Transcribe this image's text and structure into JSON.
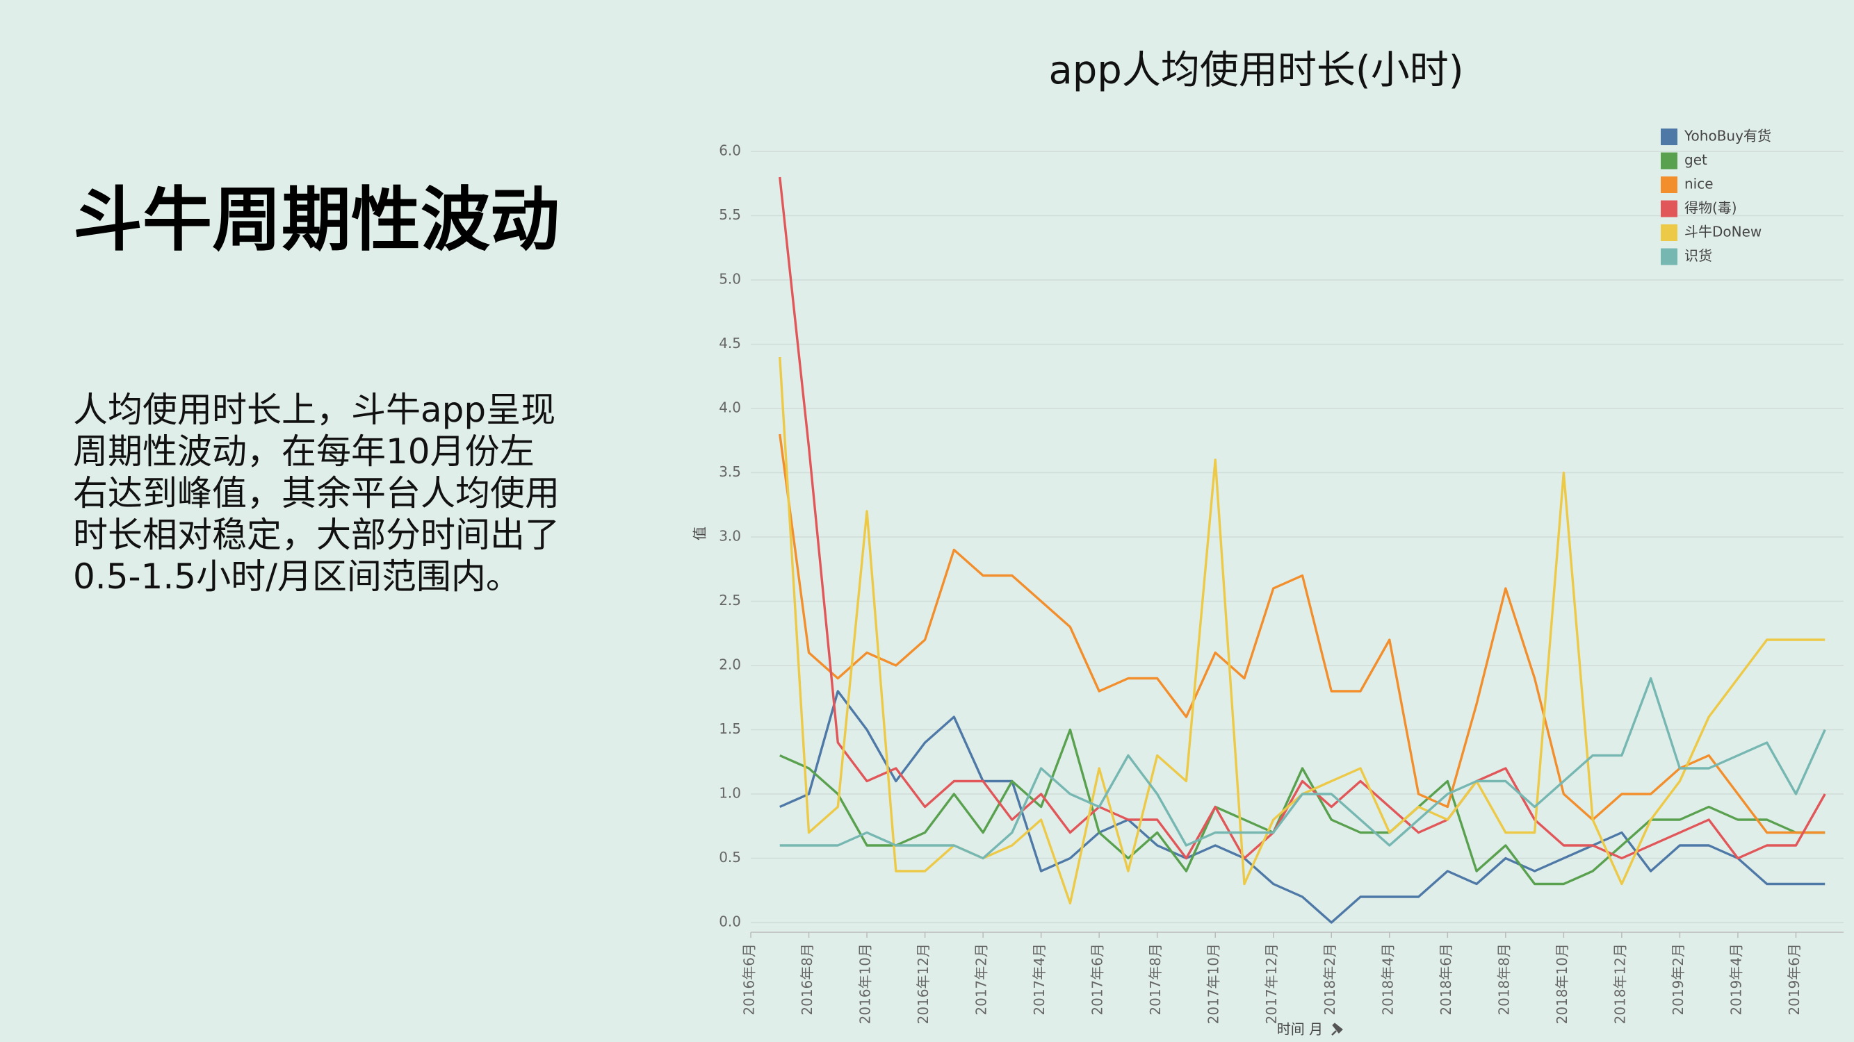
{
  "slide": {
    "heading": "斗牛周期性波动",
    "paragraph_lines": [
      "人均使用时长上，斗牛app呈现",
      "周期性波动，在每年10月份左",
      "右达到峰值，其余平台人均使用",
      "时长相对稳定，大部分时间出了",
      "0.5-1.5小时/月区间范围内。"
    ]
  },
  "chart_data": {
    "type": "line",
    "title": "app人均使用时长(小时)",
    "x_label": "时间 月",
    "y_label": "值",
    "x": [
      "2016-07",
      "2016-08",
      "2016-09",
      "2016-10",
      "2016-11",
      "2016-12",
      "2017-01",
      "2017-02",
      "2017-03",
      "2017-04",
      "2017-05",
      "2017-06",
      "2017-07",
      "2017-08",
      "2017-09",
      "2017-10",
      "2017-11",
      "2017-12",
      "2018-01",
      "2018-02",
      "2018-03",
      "2018-04",
      "2018-05",
      "2018-06",
      "2018-07",
      "2018-08",
      "2018-09",
      "2018-10",
      "2018-11",
      "2018-12",
      "2019-01",
      "2019-02",
      "2019-03",
      "2019-04",
      "2019-05",
      "2019-06",
      "2019-07"
    ],
    "xlim": [
      "2016-06",
      "2019-08"
    ],
    "xticks": [
      {
        "value": "2016-06",
        "label": "2016年6月"
      },
      {
        "value": "2016-08",
        "label": "2016年8月"
      },
      {
        "value": "2016-10",
        "label": "2016年10月"
      },
      {
        "value": "2016-12",
        "label": "2016年12月"
      },
      {
        "value": "2017-02",
        "label": "2017年2月"
      },
      {
        "value": "2017-04",
        "label": "2017年4月"
      },
      {
        "value": "2017-06",
        "label": "2017年6月"
      },
      {
        "value": "2017-08",
        "label": "2017年8月"
      },
      {
        "value": "2017-10",
        "label": "2017年10月"
      },
      {
        "value": "2017-12",
        "label": "2017年12月"
      },
      {
        "value": "2018-02",
        "label": "2018年2月"
      },
      {
        "value": "2018-04",
        "label": "2018年4月"
      },
      {
        "value": "2018-06",
        "label": "2018年6月"
      },
      {
        "value": "2018-08",
        "label": "2018年8月"
      },
      {
        "value": "2018-10",
        "label": "2018年10月"
      },
      {
        "value": "2018-12",
        "label": "2018年12月"
      },
      {
        "value": "2019-02",
        "label": "2019年2月"
      },
      {
        "value": "2019-04",
        "label": "2019年4月"
      },
      {
        "value": "2019-06",
        "label": "2019年6月"
      }
    ],
    "ylim": [
      0,
      6
    ],
    "yticks": [
      {
        "value": 0,
        "label": "0.0"
      },
      0.5,
      {
        "value": 1,
        "label": "1.0"
      },
      1.5,
      {
        "value": 2,
        "label": "2.0"
      },
      2.5,
      {
        "value": 3,
        "label": "3.0"
      },
      3.5,
      {
        "value": 4,
        "label": "4.0"
      },
      4.5,
      {
        "value": 5,
        "label": "5.0"
      },
      5.5,
      {
        "value": 6,
        "label": "6.0"
      }
    ],
    "grid": true,
    "legend": "top-right",
    "series": [
      {
        "name": "YohoBuy有货",
        "color": "#4e79a7",
        "values": [
          0.9,
          1.0,
          1.8,
          1.5,
          1.1,
          1.4,
          1.6,
          1.1,
          1.1,
          0.4,
          0.5,
          0.7,
          0.8,
          0.6,
          0.5,
          0.6,
          0.5,
          0.3,
          0.2,
          0.0,
          0.2,
          0.2,
          0.2,
          0.4,
          0.3,
          0.5,
          0.4,
          0.5,
          0.6,
          0.7,
          0.4,
          0.6,
          0.6,
          0.5,
          0.3,
          0.3,
          0.3
        ]
      },
      {
        "name": "get",
        "color": "#59a14f",
        "values": [
          1.3,
          1.2,
          1.0,
          0.6,
          0.6,
          0.7,
          1.0,
          0.7,
          1.1,
          0.9,
          1.5,
          0.7,
          0.5,
          0.7,
          0.4,
          0.9,
          0.8,
          0.7,
          1.2,
          0.8,
          0.7,
          0.7,
          0.9,
          1.1,
          0.4,
          0.6,
          0.3,
          0.3,
          0.4,
          0.6,
          0.8,
          0.8,
          0.9,
          0.8,
          0.8,
          0.7,
          0.7
        ]
      },
      {
        "name": "nice",
        "color": "#f28e2b",
        "values": [
          3.8,
          2.1,
          1.9,
          2.1,
          2.0,
          2.2,
          2.9,
          2.7,
          2.7,
          2.5,
          2.3,
          1.8,
          1.9,
          1.9,
          1.6,
          2.1,
          1.9,
          2.6,
          2.7,
          1.8,
          1.8,
          2.2,
          1.0,
          0.9,
          1.7,
          2.6,
          1.9,
          1.0,
          0.8,
          1.0,
          1.0,
          1.2,
          1.3,
          1.0,
          0.7,
          0.7,
          0.7
        ]
      },
      {
        "name": "得物(毒)",
        "color": "#e15759",
        "values": [
          5.8,
          3.7,
          1.4,
          1.1,
          1.2,
          0.9,
          1.1,
          1.1,
          0.8,
          1.0,
          0.7,
          0.9,
          0.8,
          0.8,
          0.5,
          0.9,
          0.5,
          0.7,
          1.1,
          0.9,
          1.1,
          0.9,
          0.7,
          0.8,
          1.1,
          1.2,
          0.8,
          0.6,
          0.6,
          0.5,
          0.6,
          0.7,
          0.8,
          0.5,
          0.6,
          0.6,
          1.0
        ]
      },
      {
        "name": "斗牛DoNew",
        "color": "#edc948",
        "values": [
          4.4,
          0.7,
          0.9,
          3.2,
          0.4,
          0.4,
          0.6,
          0.5,
          0.6,
          0.8,
          0.15,
          1.2,
          0.4,
          1.3,
          1.1,
          3.6,
          0.3,
          0.8,
          1.0,
          1.1,
          1.2,
          0.7,
          0.9,
          0.8,
          1.1,
          0.7,
          0.7,
          3.5,
          0.8,
          0.3,
          0.8,
          1.1,
          1.6,
          1.9,
          2.2,
          2.2,
          2.2
        ]
      },
      {
        "name": "识货",
        "color": "#76b7b2",
        "values": [
          0.6,
          0.6,
          0.6,
          0.7,
          0.6,
          0.6,
          0.6,
          0.5,
          0.7,
          1.2,
          1.0,
          0.9,
          1.3,
          1.0,
          0.6,
          0.7,
          0.7,
          0.7,
          1.0,
          1.0,
          0.8,
          0.6,
          0.8,
          1.0,
          1.1,
          1.1,
          0.9,
          1.1,
          1.3,
          1.3,
          1.9,
          1.2,
          1.2,
          1.3,
          1.4,
          1.0,
          1.5
        ]
      }
    ]
  }
}
